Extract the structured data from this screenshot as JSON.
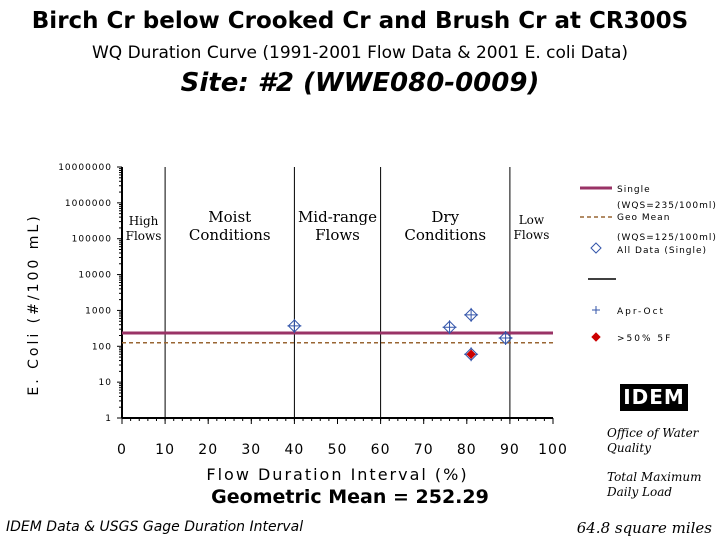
{
  "header": {
    "title": "Birch Cr below Crooked Cr and Brush Cr at CR300S",
    "subtitle": "WQ Duration Curve   (1991-2001 Flow Data & 2001 E. coli Data)",
    "site": "Site:  #2 (WWE080-0009)"
  },
  "footer": {
    "geomean": "Geometric Mean = 252.29",
    "source": "IDEM Data & USGS Gage Duration Interval",
    "area": "64.8 square miles"
  },
  "sidebar": {
    "logo": "IDEM",
    "office": "Office of Water Quality",
    "tmdl": "Total Maximum Daily Load"
  },
  "colors": {
    "single_line": "#993366",
    "geomean_line": "#996633",
    "all_data_marker": "#3355aa",
    "apr_oct_marker": "#3355aa",
    "over50_marker": "#cc0000"
  },
  "chart_data": {
    "type": "scatter",
    "xlabel": "Flow Duration Interval (%)",
    "ylabel": "E. Coli (#/100 mL)",
    "xlim": [
      0,
      100
    ],
    "ylim": [
      1,
      10000000
    ],
    "yscale": "log",
    "x_ticks": [
      "0",
      "10",
      "20",
      "30",
      "40",
      "50",
      "60",
      "70",
      "80",
      "90",
      "100"
    ],
    "y_ticks": [
      "1",
      "10",
      "100",
      "1000",
      "10000",
      "100000",
      "1000000",
      "10000000"
    ],
    "zones": [
      {
        "label": "High Flows",
        "from": 0,
        "to": 10
      },
      {
        "label": "Moist Conditions",
        "from": 10,
        "to": 40
      },
      {
        "label": "Mid-range Flows",
        "from": 40,
        "to": 60
      },
      {
        "label": "Dry Conditions",
        "from": 60,
        "to": 90
      },
      {
        "label": "Low Flows",
        "from": 90,
        "to": 100
      }
    ],
    "reference_lines": [
      {
        "name": "Single",
        "note": "(WQS=235/100ml)",
        "value": 235,
        "style": "solid"
      },
      {
        "name": "Geo Mean",
        "note": "(WQS=125/100ml)",
        "value": 125,
        "style": "dashed"
      }
    ],
    "series": [
      {
        "name": "All Data (Single)",
        "marker": "diamond-open",
        "points": [
          [
            40,
            370
          ],
          [
            76,
            340
          ],
          [
            81,
            750
          ],
          [
            81,
            60
          ],
          [
            89,
            170
          ]
        ]
      },
      {
        "name": "Apr-Oct",
        "marker": "plus",
        "points": [
          [
            40,
            370
          ],
          [
            76,
            340
          ],
          [
            81,
            750
          ],
          [
            81,
            60
          ],
          [
            89,
            170
          ]
        ]
      },
      {
        "name": ">50% 5F",
        "marker": "diamond-filled",
        "points": [
          [
            81,
            60
          ]
        ]
      }
    ],
    "grid": false,
    "legend_position": "right"
  }
}
